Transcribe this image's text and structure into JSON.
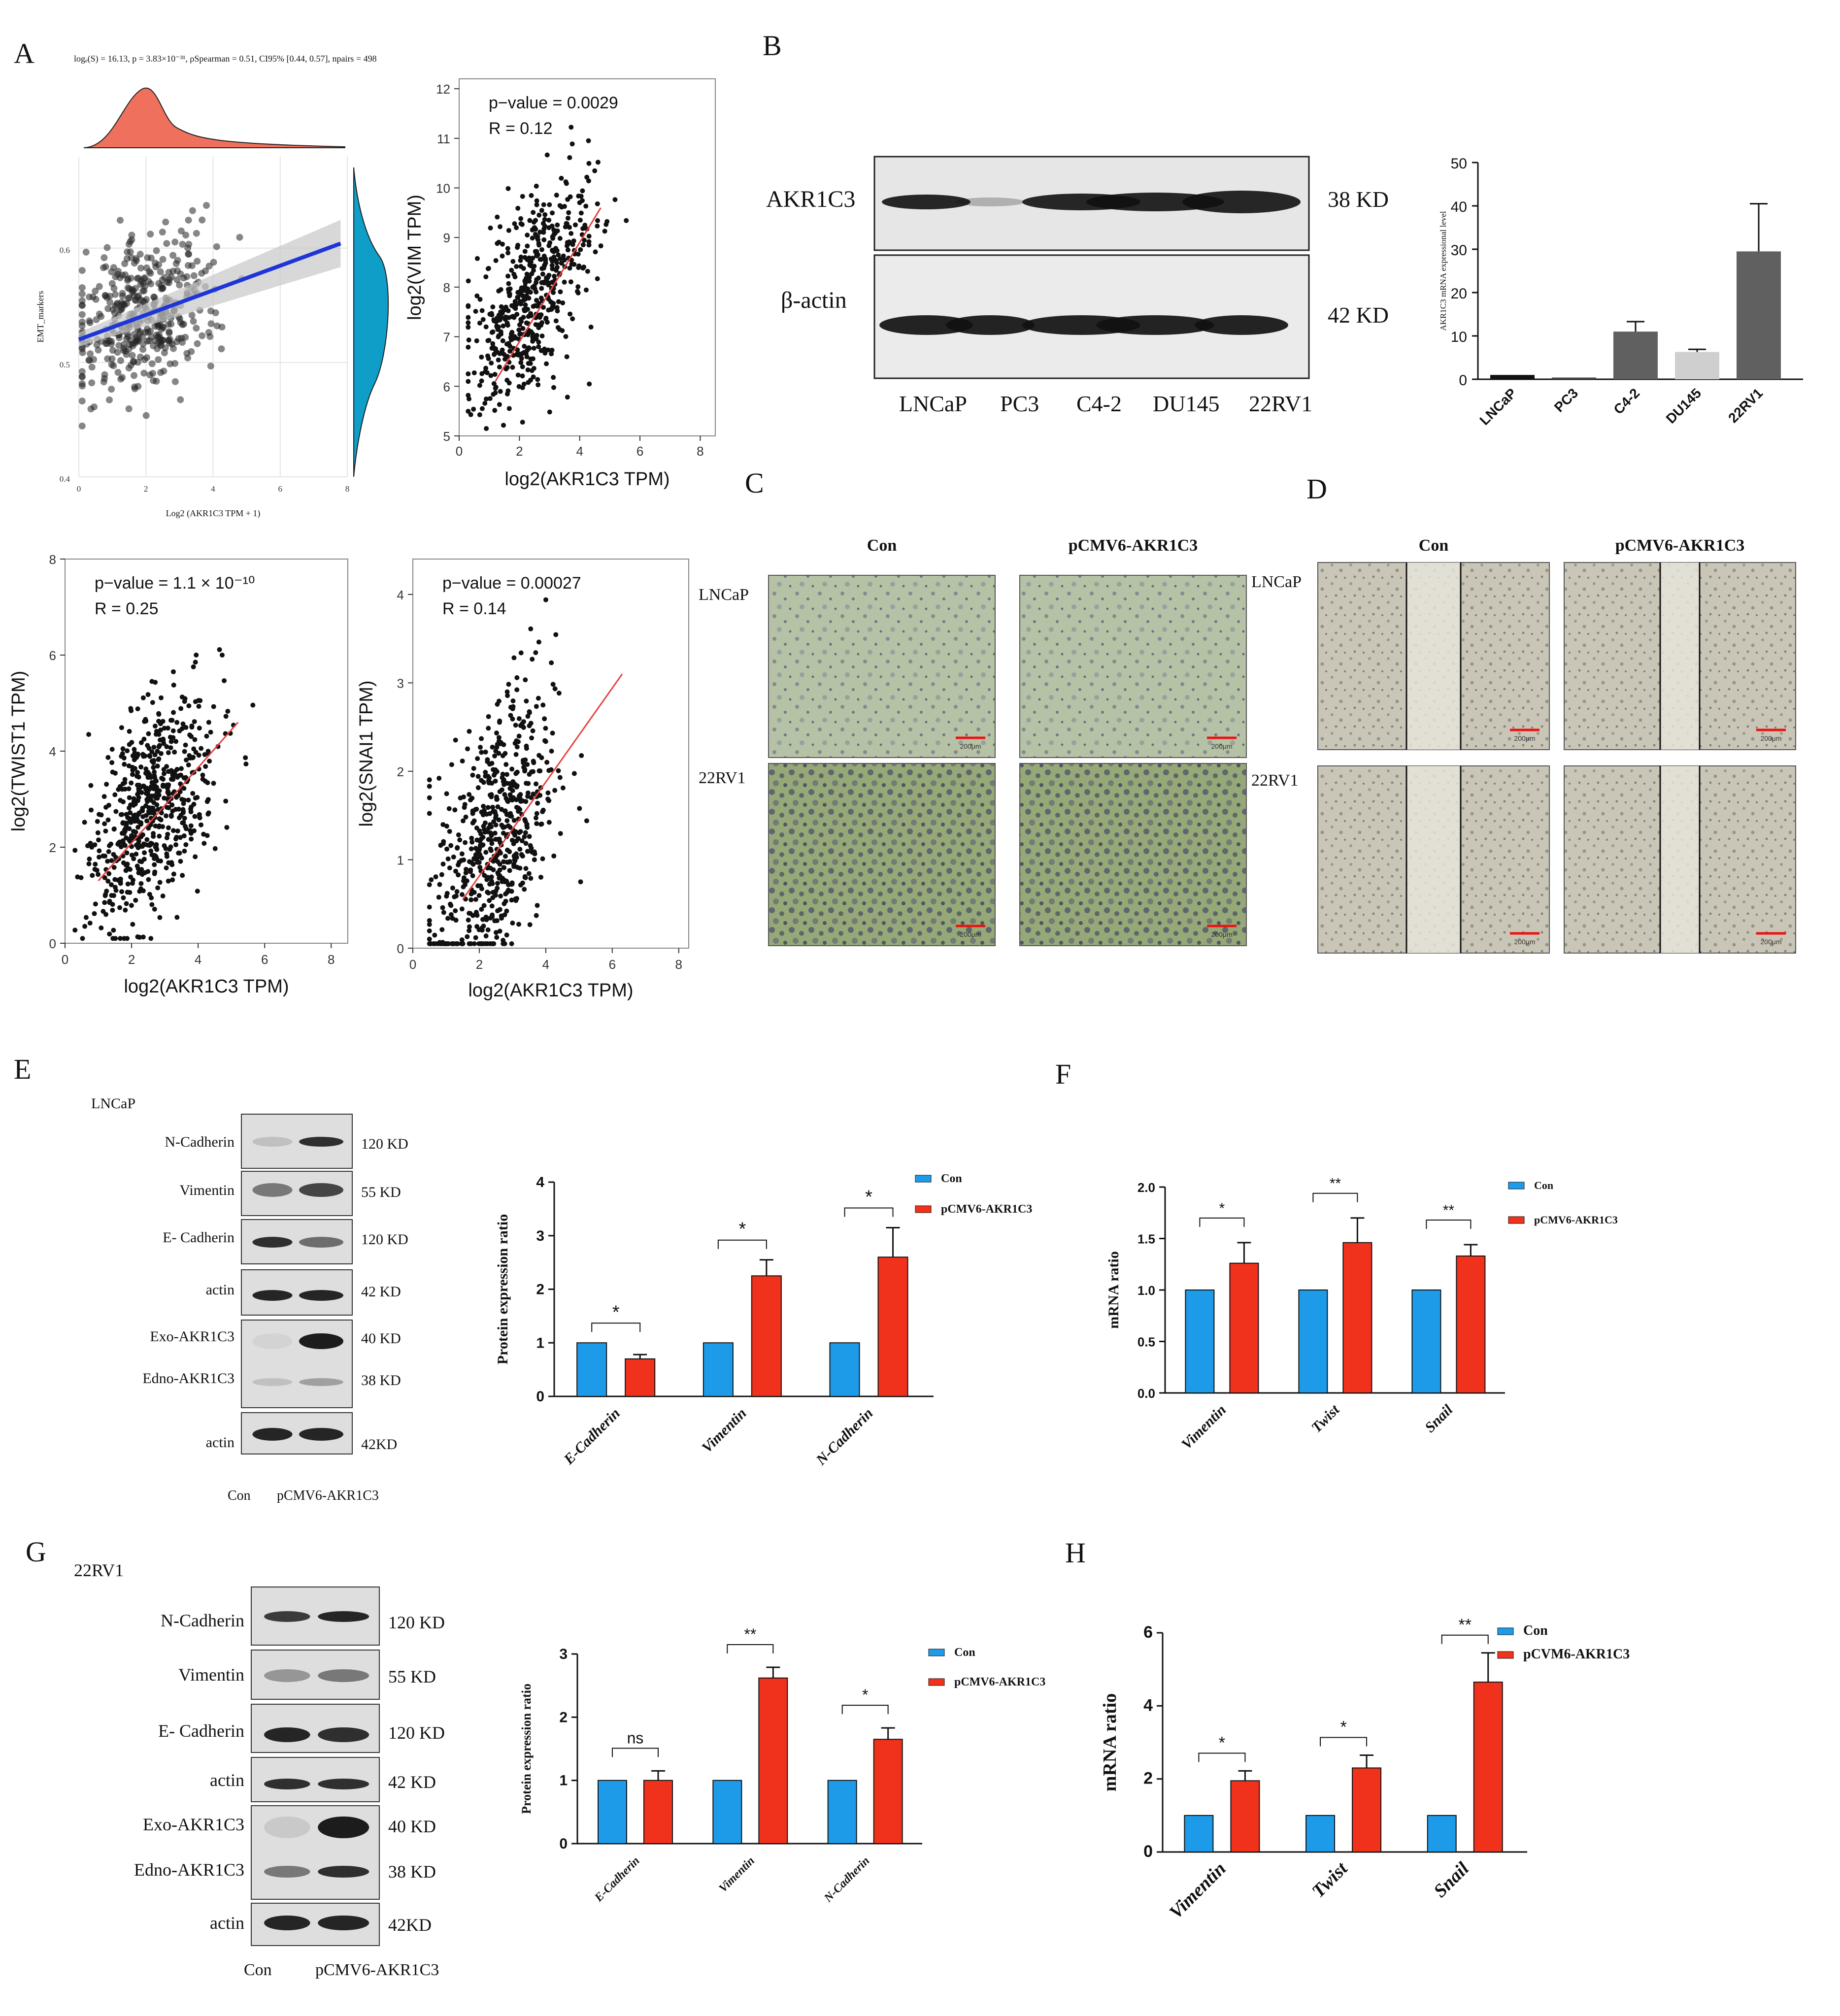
{
  "panel_labels": [
    "A",
    "B",
    "C",
    "D",
    "E",
    "F",
    "G",
    "H"
  ],
  "colors": {
    "con": "#1e9be8",
    "oe": "#f0321c",
    "ridge_fill": "#f0705e",
    "ridge_side": "#0f9ec8",
    "fit_blue": "#1e35d8",
    "fit_red": "#e64040",
    "bar_dark": "#606060",
    "bar_mid": "#8a8a8a",
    "bar_light": "#cfcfcf",
    "bar_black": "#111111"
  },
  "A": {
    "stats": "logₑ(S) = 16.13, p = 3.83×10⁻³¹, ρSpearman = 0.51, CI95% [0.44, 0.57], npairs = 498",
    "xlabel": "Log2 (AKR1C3 TPM + 1)",
    "ylabel": "EMT_markers"
  },
  "chart_data": [
    {
      "id": "A1",
      "type": "scatter",
      "title": "",
      "xlabel": "Log2 (AKR1C3 TPM + 1)",
      "ylabel": "EMT_markers",
      "xlim": [
        0,
        8
      ],
      "ylim": [
        0.4,
        0.68
      ],
      "xticks": [
        "0",
        "2",
        "4",
        "6",
        "8"
      ],
      "yticks": [
        "0.4",
        "0.5",
        "0.6"
      ],
      "fit": {
        "x": [
          0,
          7.8
        ],
        "y": [
          0.52,
          0.604
        ]
      },
      "annotation": "n = 498"
    },
    {
      "id": "A2",
      "type": "scatter",
      "xlabel": "log2(AKR1C3 TPM)",
      "ylabel": "log2(VIM TPM)",
      "xlim": [
        0,
        8.5
      ],
      "ylim": [
        5,
        12.2
      ],
      "xticks": [
        "0",
        "2",
        "4",
        "6",
        "8"
      ],
      "yticks": [
        "5",
        "6",
        "7",
        "8",
        "9",
        "10",
        "11",
        "12"
      ],
      "annotations": [
        "p−value = 0.0029",
        "R = 0.12"
      ],
      "fit": {
        "x": [
          1.2,
          4.7
        ],
        "y": [
          6.1,
          9.6
        ]
      }
    },
    {
      "id": "A3",
      "type": "scatter",
      "xlabel": "log2(AKR1C3 TPM)",
      "ylabel": "log2(TWIST1 TPM)",
      "xlim": [
        0,
        8.5
      ],
      "ylim": [
        0,
        8
      ],
      "xticks": [
        "0",
        "2",
        "4",
        "6",
        "8"
      ],
      "yticks": [
        "0",
        "2",
        "4",
        "6",
        "8"
      ],
      "annotations": [
        "p−value = 1.1 × 10⁻¹⁰",
        "R = 0.25"
      ],
      "fit": {
        "x": [
          1,
          5.2
        ],
        "y": [
          1.3,
          4.6
        ]
      }
    },
    {
      "id": "A4",
      "type": "scatter",
      "xlabel": "log2(AKR1C3 TPM)",
      "ylabel": "log2(SNAI1 TPM)",
      "xlim": [
        0,
        8.3
      ],
      "ylim": [
        0,
        4.4
      ],
      "xticks": [
        "0",
        "2",
        "4",
        "6",
        "8"
      ],
      "yticks": [
        "0",
        "1",
        "2",
        "3",
        "4"
      ],
      "annotations": [
        "p−value = 0.00027",
        "R = 0.14"
      ],
      "fit": {
        "x": [
          1.5,
          6.3
        ],
        "y": [
          0.55,
          3.1
        ]
      }
    },
    {
      "id": "B",
      "type": "bar",
      "categories": [
        "LNCaP",
        "PC3",
        "C4-2",
        "DU145",
        "22RV1"
      ],
      "values": [
        1,
        0.4,
        11,
        6.3,
        29.5
      ],
      "errors": [
        0,
        0,
        2.3,
        0.6,
        11
      ],
      "ylabel": "AKR1C3 mRNA expressional level",
      "ylim": [
        0,
        50
      ],
      "yticks": [
        "0",
        "10",
        "20",
        "30",
        "40",
        "50"
      ]
    },
    {
      "id": "E",
      "type": "bar",
      "categories": [
        "E-Cadherin",
        "Vimentin",
        "N-Cadherin"
      ],
      "series": [
        {
          "name": "Con",
          "values": [
            1,
            1,
            1
          ],
          "errors": [
            0,
            0,
            0
          ]
        },
        {
          "name": "pCMV6-AKR1C3",
          "values": [
            0.7,
            2.25,
            2.6
          ],
          "errors": [
            0.08,
            0.3,
            0.55
          ]
        }
      ],
      "ylabel": "Protein expression ratio",
      "ylim": [
        0,
        4
      ],
      "yticks": [
        "0",
        "1",
        "2",
        "3",
        "4"
      ],
      "significance": [
        "*",
        "*",
        "*"
      ]
    },
    {
      "id": "F",
      "type": "bar",
      "categories": [
        "Vimentin",
        "Twist",
        "Snail"
      ],
      "series": [
        {
          "name": "Con",
          "values": [
            1,
            1,
            1
          ],
          "errors": [
            0,
            0,
            0
          ]
        },
        {
          "name": "pCMV6-AKR1C3",
          "values": [
            1.26,
            1.46,
            1.33
          ],
          "errors": [
            0.2,
            0.24,
            0.11
          ]
        }
      ],
      "ylabel": "mRNA ratio",
      "ylim": [
        0,
        2
      ],
      "yticks": [
        "0.0",
        "0.5",
        "1.0",
        "1.5",
        "2.0"
      ],
      "significance": [
        "*",
        "**",
        "**"
      ]
    },
    {
      "id": "G",
      "type": "bar",
      "categories": [
        "E-Cadherin",
        "Vimentin",
        "N-Cadherin"
      ],
      "series": [
        {
          "name": "Con",
          "values": [
            1,
            1,
            1
          ],
          "errors": [
            0,
            0,
            0
          ]
        },
        {
          "name": "pCMV6-AKR1C3",
          "values": [
            1,
            2.62,
            1.65
          ],
          "errors": [
            0.15,
            0.17,
            0.18
          ]
        }
      ],
      "ylabel": "Protein expression ratio",
      "ylim": [
        0,
        3
      ],
      "yticks": [
        "0",
        "1",
        "2",
        "3"
      ],
      "significance": [
        "ns",
        "**",
        "*"
      ]
    },
    {
      "id": "H",
      "type": "bar",
      "categories": [
        "Vimentin",
        "Twist",
        "Snail"
      ],
      "series": [
        {
          "name": "Con",
          "values": [
            1,
            1,
            1
          ],
          "errors": [
            0,
            0,
            0
          ]
        },
        {
          "name": "pCVM6-AKR1C3",
          "values": [
            1.95,
            2.3,
            4.65
          ],
          "errors": [
            0.27,
            0.35,
            0.8
          ]
        }
      ],
      "ylabel": "mRNA ratio",
      "ylim": [
        0,
        6
      ],
      "yticks": [
        "0",
        "2",
        "4",
        "6"
      ],
      "significance": [
        "*",
        "*",
        "**"
      ]
    }
  ],
  "B": {
    "row1": "AKR1C3",
    "row2": "β-actin",
    "kd1": "38 KD",
    "kd2": "42 KD",
    "lanes": [
      "LNCaP",
      "PC3",
      "C4-2",
      "DU145",
      "22RV1"
    ]
  },
  "C": {
    "cols": [
      "Con",
      "pCMV6-AKR1C3"
    ],
    "rows": [
      "LNCaP",
      "22RV1"
    ],
    "scale": "200μm"
  },
  "D": {
    "cols": [
      "Con",
      "pCMV6-AKR1C3"
    ],
    "rows": [
      "LNCaP",
      "22RV1"
    ],
    "scale": "200μm"
  },
  "E": {
    "cell": "LNCaP",
    "legend": [
      "Con",
      "pCMV6-AKR1C3"
    ],
    "blots": [
      {
        "name": "N-Cadherin",
        "kd": "120 KD"
      },
      {
        "name": "Vimentin",
        "kd": "55 KD"
      },
      {
        "name": "E- Cadherin",
        "kd": "120 KD"
      },
      {
        "name": "actin",
        "kd": "42 KD"
      },
      {
        "name": "Exo-AKR1C3",
        "kd": "40 KD"
      },
      {
        "name": "Edno-AKR1C3",
        "kd": "38 KD"
      },
      {
        "name": "actin",
        "kd": "42KD"
      }
    ],
    "lanes": [
      "Con",
      "pCMV6-AKR1C3"
    ]
  },
  "F": {
    "legend": [
      "Con",
      "pCMV6-AKR1C3"
    ]
  },
  "G": {
    "cell": "22RV1",
    "legend": [
      "Con",
      "pCMV6-AKR1C3"
    ],
    "blots": [
      {
        "name": "N-Cadherin",
        "kd": "120 KD"
      },
      {
        "name": "Vimentin",
        "kd": "55 KD"
      },
      {
        "name": "E- Cadherin",
        "kd": "120 KD"
      },
      {
        "name": "actin",
        "kd": "42 KD"
      },
      {
        "name": "Exo-AKR1C3",
        "kd": "40 KD"
      },
      {
        "name": "Edno-AKR1C3",
        "kd": "38 KD"
      },
      {
        "name": "actin",
        "kd": "42KD"
      }
    ],
    "lanes": [
      "Con",
      "pCMV6-AKR1C3"
    ]
  },
  "H": {
    "legend": [
      "Con",
      "pCVM6-AKR1C3"
    ]
  }
}
